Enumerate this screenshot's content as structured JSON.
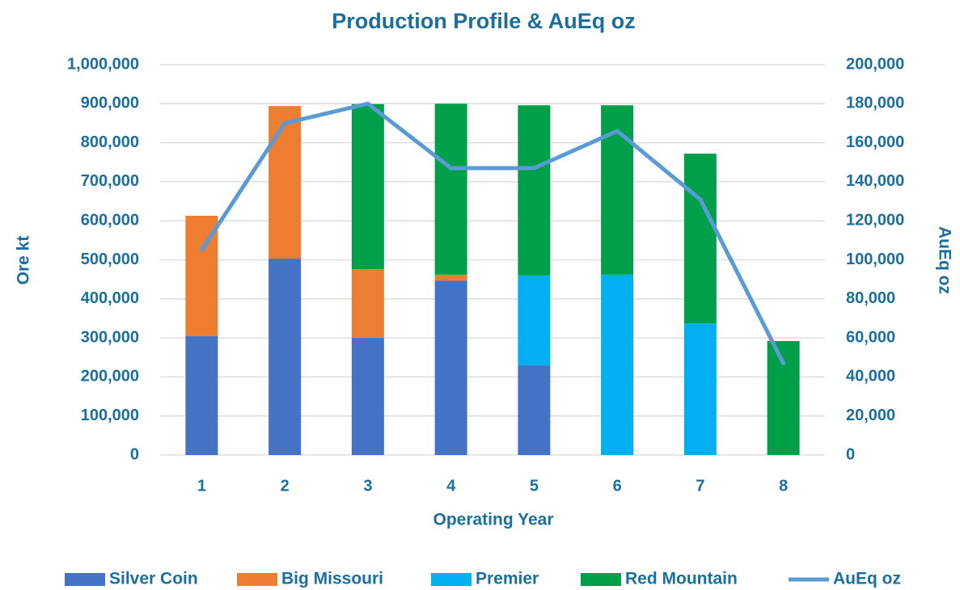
{
  "chart_data": {
    "type": "bar",
    "title": "Production Profile & AuEq oz",
    "x_label": "Operating Year",
    "y_label": "Ore kt",
    "y2_label": "AuEq oz",
    "categories": [
      "1",
      "2",
      "3",
      "4",
      "5",
      "6",
      "7",
      "8"
    ],
    "stacked": true,
    "grid": true,
    "legend": "bottom",
    "series": [
      {
        "name": "Silver Coin",
        "type": "bar",
        "color": "#4472c4",
        "values": [
          305000,
          503000,
          300000,
          447000,
          230000,
          0,
          0,
          0
        ]
      },
      {
        "name": "Big Missouri",
        "type": "bar",
        "color": "#ed7d31",
        "values": [
          308000,
          391000,
          176000,
          15000,
          0,
          0,
          0,
          0
        ]
      },
      {
        "name": "Premier",
        "type": "bar",
        "color": "#00b0f0",
        "values": [
          0,
          0,
          0,
          0,
          230000,
          462000,
          337000,
          0
        ]
      },
      {
        "name": "Red Mountain",
        "type": "bar",
        "color": "#00a04b",
        "values": [
          0,
          0,
          423000,
          438000,
          436000,
          434000,
          435000,
          292000
        ]
      },
      {
        "name": "AuEq oz",
        "type": "line",
        "axis": "y2",
        "color": "#5b9bd5",
        "values": [
          105000,
          170000,
          180000,
          147000,
          147000,
          166000,
          131000,
          47000
        ]
      }
    ],
    "ylim": [
      0,
      1000000
    ],
    "yticks": [
      0,
      {
        "value": 100000,
        "label": "100,000"
      },
      {
        "value": 200000,
        "label": "200,000"
      },
      {
        "value": 300000,
        "label": "300,000"
      },
      {
        "value": 400000,
        "label": "400,000"
      },
      {
        "value": 500000,
        "label": "500,000"
      },
      {
        "value": 600000,
        "label": "600,000"
      },
      {
        "value": 700000,
        "label": "700,000"
      },
      {
        "value": 800000,
        "label": "800,000"
      },
      {
        "value": 900000,
        "label": "900,000"
      },
      {
        "value": 1000000,
        "label": "1,000,000"
      }
    ],
    "y2lim": [
      0,
      200000
    ],
    "y2ticks": [
      0,
      {
        "value": 20000,
        "label": "20,000"
      },
      {
        "value": 40000,
        "label": "40,000"
      },
      {
        "value": 60000,
        "label": "60,000"
      },
      {
        "value": 80000,
        "label": "80,000"
      },
      {
        "value": 100000,
        "label": "100,000"
      },
      {
        "value": 120000,
        "label": "120,000"
      },
      {
        "value": 140000,
        "label": "140,000"
      },
      {
        "value": 160000,
        "label": "160,000"
      },
      {
        "value": 180000,
        "label": "180,000"
      },
      {
        "value": 200000,
        "label": "200,000"
      }
    ]
  }
}
